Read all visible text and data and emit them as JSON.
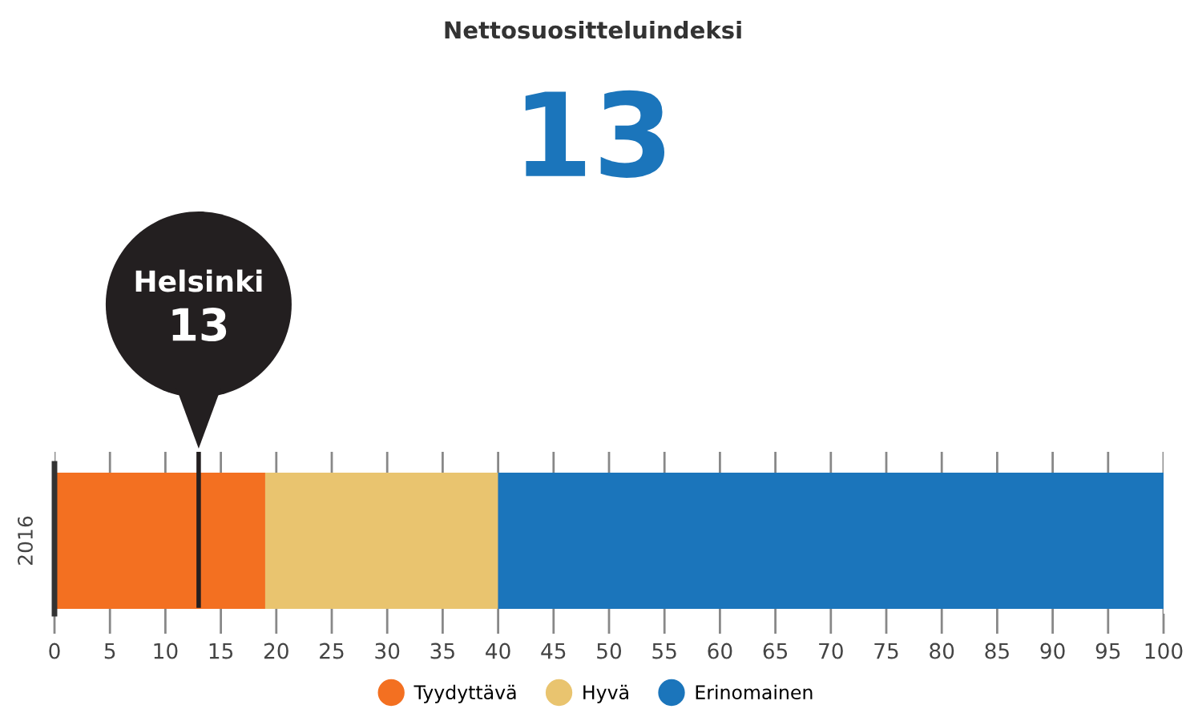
{
  "chart_data": {
    "type": "bar",
    "orientation": "horizontal",
    "stacked": true,
    "title": "Nettosuositteluindeksi",
    "subtitle": "13",
    "categories": [
      "2016"
    ],
    "series": [
      {
        "name": "Tyydyttävä",
        "color": "#f37021",
        "values": [
          19
        ]
      },
      {
        "name": "Hyvä",
        "color": "#e9c46f",
        "values": [
          21
        ]
      },
      {
        "name": "Erinomainen",
        "color": "#1b75bb",
        "values": [
          60
        ]
      }
    ],
    "xlim": [
      0,
      100
    ],
    "xticks": [
      0,
      5,
      10,
      15,
      20,
      25,
      30,
      35,
      40,
      45,
      50,
      55,
      60,
      65,
      70,
      75,
      80,
      85,
      90,
      95,
      100
    ],
    "grid": "x",
    "legend": "bottom",
    "marker": "circle",
    "ref_lines": [
      {
        "axis": "x",
        "value": 13,
        "label": "Helsinki\n13",
        "color": "#231f20"
      }
    ]
  }
}
